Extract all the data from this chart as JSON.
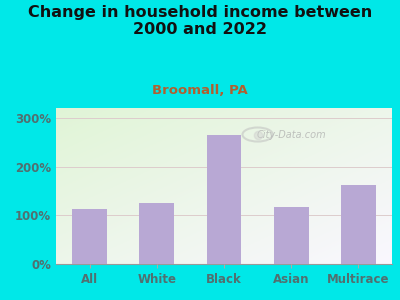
{
  "title": "Change in household income between\n2000 and 2022",
  "subtitle": "Broomall, PA",
  "categories": [
    "All",
    "White",
    "Black",
    "Asian",
    "Multirace"
  ],
  "values": [
    112,
    125,
    265,
    117,
    163
  ],
  "bar_color": "#b8a8d4",
  "title_fontsize": 11.5,
  "subtitle_fontsize": 9.5,
  "subtitle_color": "#b06030",
  "ylim": [
    0,
    320
  ],
  "yticks": [
    0,
    100,
    200,
    300
  ],
  "ytick_labels": [
    "0%",
    "100%",
    "200%",
    "300%"
  ],
  "background_outer": "#00e8e8",
  "background_inner_top_left": "#e8f5e0",
  "background_inner_bottom_right": "#f8f8ff",
  "grid_color": "#ddcccc",
  "watermark": "City-Data.com",
  "tick_color": "#507070",
  "title_color": "#111111",
  "axis_label_fontsize": 8.5
}
